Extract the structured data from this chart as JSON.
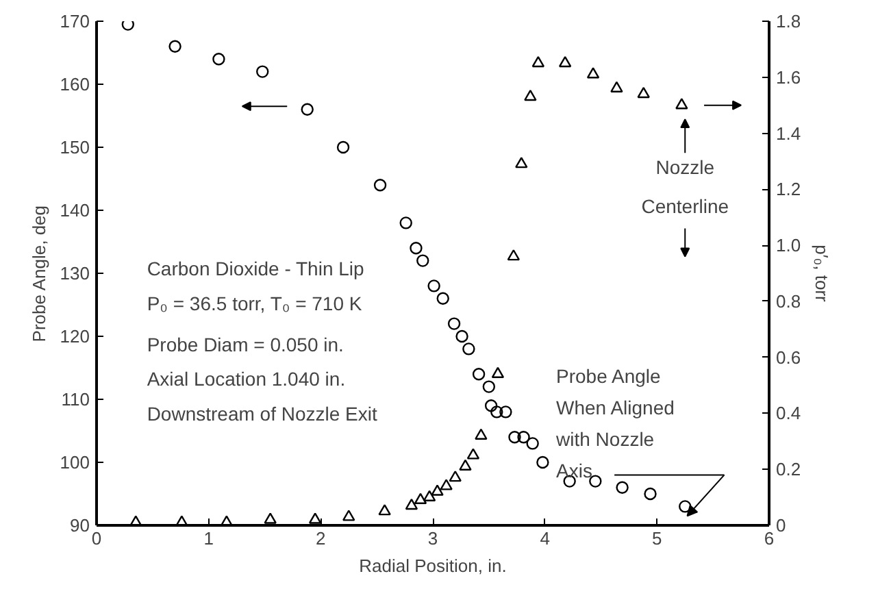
{
  "chart_data": {
    "type": "scatter",
    "xlabel": "Radial Position, in.",
    "ylabel": "Probe Angle, deg",
    "y2label": "p′₀, torr",
    "xlim": [
      0,
      6
    ],
    "xticks": [
      0,
      1,
      2,
      3,
      4,
      5,
      6
    ],
    "ylim": [
      90,
      170
    ],
    "yticks": [
      90,
      100,
      110,
      120,
      130,
      140,
      150,
      160,
      170
    ],
    "y2lim": [
      0,
      1.8
    ],
    "y2ticks": [
      0,
      0.2,
      0.4,
      0.6,
      0.8,
      {
        "value": 1,
        "label": "1.0"
      },
      1.2,
      1.4,
      1.6,
      1.8
    ],
    "grid": false,
    "series": [
      {
        "color": "#000000",
        "marker": "circle",
        "x": [
          0.28,
          0.7,
          1.09,
          1.48,
          1.88,
          2.2,
          2.53,
          2.76,
          2.85,
          2.91,
          3.01,
          3.09,
          3.19,
          3.26,
          3.32,
          3.41,
          3.5,
          3.52,
          3.57,
          3.65,
          3.73,
          3.81,
          3.89,
          3.98,
          4.22,
          4.45,
          4.69,
          4.94,
          5.25
        ],
        "values": [
          169.5,
          166,
          164,
          162,
          156,
          150,
          144,
          138,
          134,
          132,
          128,
          126,
          122,
          120,
          118,
          114,
          112,
          109,
          108,
          108,
          104,
          104,
          103,
          100,
          97,
          97,
          96,
          95,
          93
        ]
      },
      {
        "color": "#000000",
        "marker": "triangle",
        "axis": "y2",
        "x": [
          0.35,
          0.76,
          1.16,
          1.55,
          1.95,
          2.25,
          2.57,
          2.81,
          2.89,
          2.97,
          3.04,
          3.12,
          3.2,
          3.29,
          3.36,
          3.43,
          3.58,
          3.72,
          3.79,
          3.87,
          3.94,
          4.18,
          4.43,
          4.64,
          4.88,
          5.22
        ],
        "values": [
          0.01,
          0.01,
          0.01,
          0.02,
          0.02,
          0.03,
          0.05,
          0.07,
          0.09,
          0.1,
          0.12,
          0.14,
          0.17,
          0.21,
          0.25,
          0.32,
          0.54,
          0.96,
          1.29,
          1.53,
          1.65,
          1.65,
          1.61,
          1.56,
          1.54,
          1.5
        ]
      }
    ],
    "annotations": [
      "Carbon Dioxide - Thin Lip",
      "P₀ = 36.5 torr, T₀ = 710 K",
      "Probe Diam = 0.050 in.",
      "Axial Location 1.040 in.",
      "Downstream of Nozzle Exit",
      "Nozzle Centerline",
      "Probe Angle When Aligned with Nozzle Axis"
    ]
  }
}
